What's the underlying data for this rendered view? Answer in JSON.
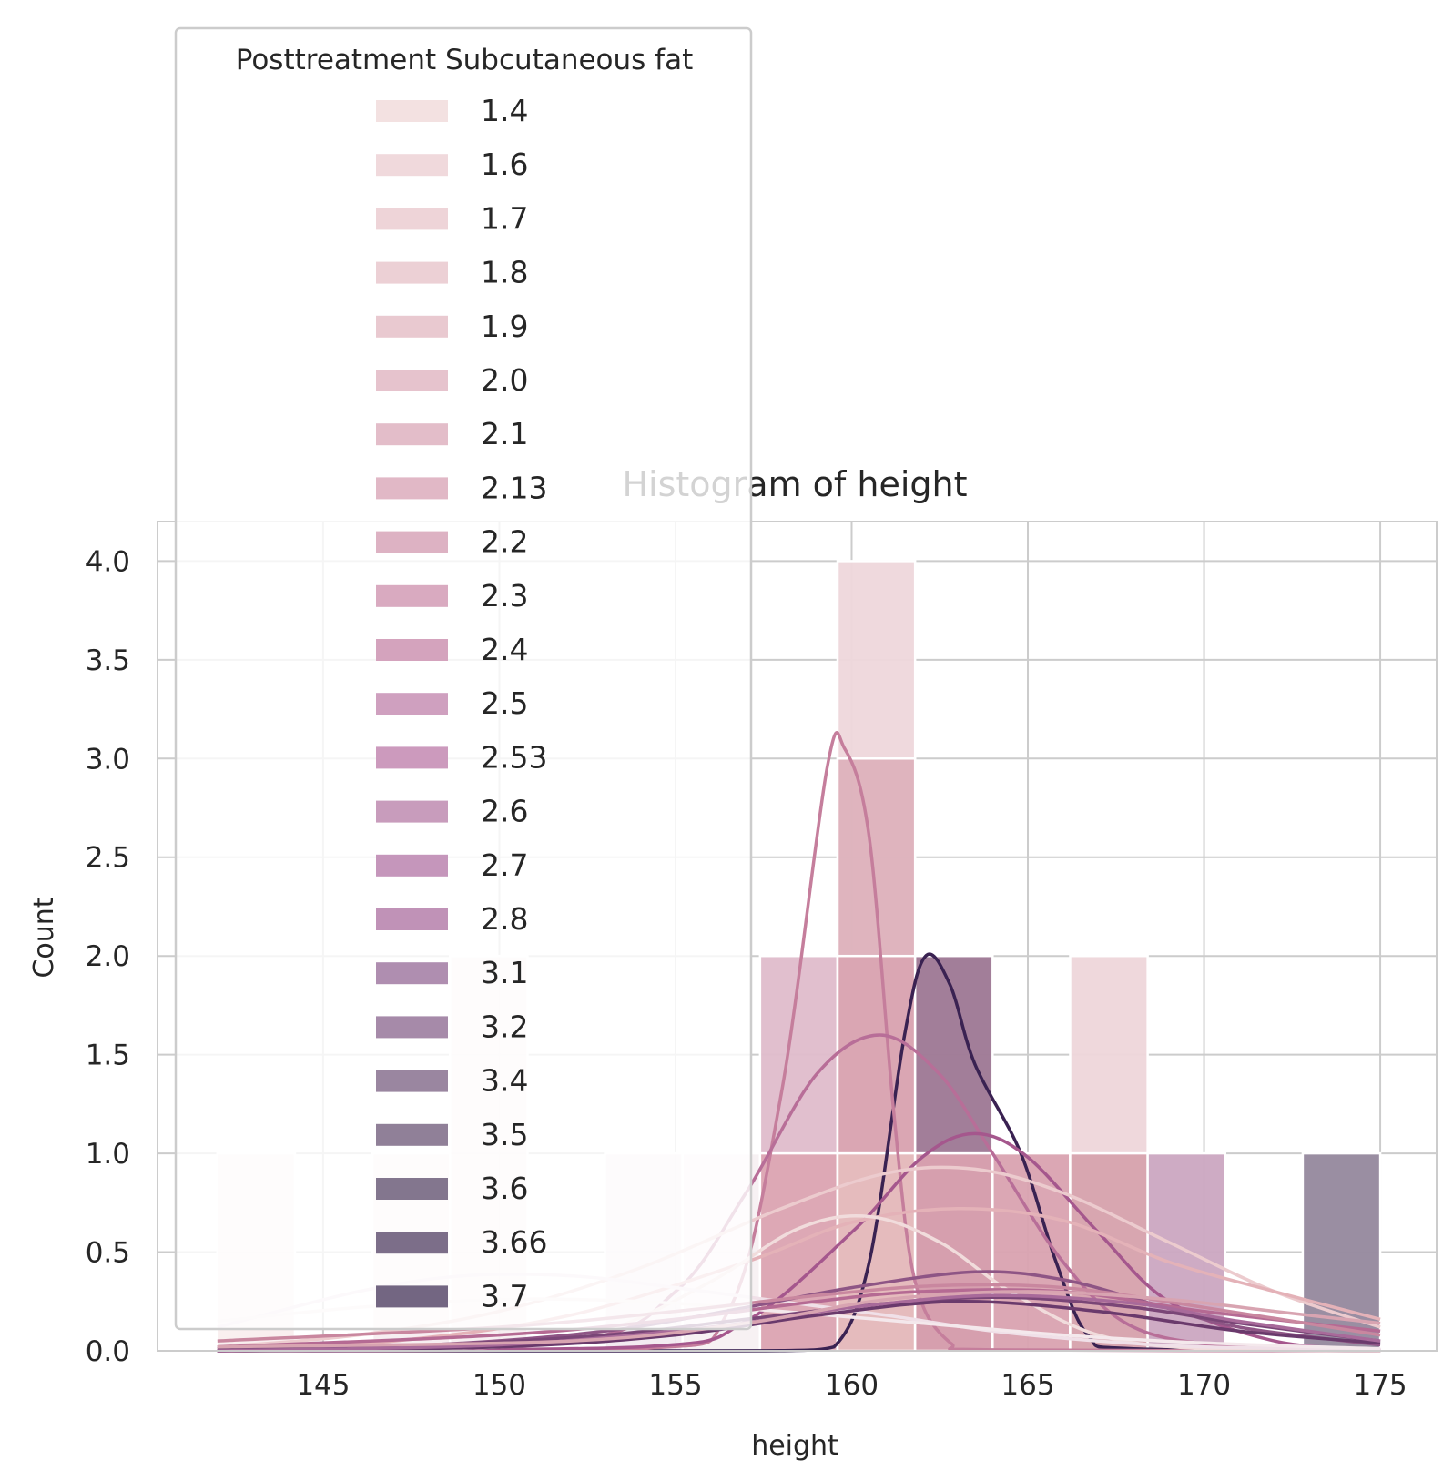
{
  "chart_data": {
    "type": "bar",
    "title": "Histogram of height",
    "xlabel": "height",
    "ylabel": "Count",
    "xlim": [
      140.3,
      176.6
    ],
    "ylim": [
      0,
      4.2
    ],
    "xticks": [
      145,
      150,
      155,
      160,
      165,
      170,
      175
    ],
    "yticks": [
      0.0,
      0.5,
      1.0,
      1.5,
      2.0,
      2.5,
      3.0,
      3.5,
      4.0
    ],
    "grid": true,
    "legend": {
      "title": "Posttreatment Subcutaneous fat",
      "placement": "upper-left",
      "entries": [
        "1.4",
        "1.6",
        "1.7",
        "1.8",
        "1.9",
        "2.0",
        "2.1",
        "2.13",
        "2.2",
        "2.3",
        "2.4",
        "2.5",
        "2.53",
        "2.6",
        "2.7",
        "2.8",
        "3.1",
        "3.2",
        "3.4",
        "3.5",
        "3.6",
        "3.66",
        "3.7"
      ],
      "colors": [
        "#f3e1e1",
        "#f0d9dc",
        "#eed4d8",
        "#ecd0d5",
        "#e9c9d0",
        "#e6c3cd",
        "#e3bdc9",
        "#e1b8c6",
        "#ddb2c3",
        "#d9aac0",
        "#d4a3bd",
        "#cfa0bf",
        "#cc9abd",
        "#c89cbc",
        "#c596bb",
        "#c092b7",
        "#af8eb0",
        "#a68aa9",
        "#9a86a0",
        "#908098",
        "#83768e",
        "#7c6e89",
        "#736682"
      ]
    },
    "bins": {
      "start": 142.0,
      "width": 2.2,
      "edges": [
        142.0,
        144.2,
        146.4,
        148.6,
        150.8,
        153.0,
        155.2,
        157.4,
        159.6,
        161.8,
        164.0,
        166.2,
        168.4,
        170.6,
        172.8,
        175.0
      ]
    },
    "bars": [
      {
        "x_start": 142.0,
        "x_end": 144.2,
        "count": 1,
        "color": "#f8eded",
        "opacity": 0.9
      },
      {
        "x_start": 146.4,
        "x_end": 148.6,
        "count": 1,
        "color": "#f6ecef",
        "opacity": 0.9
      },
      {
        "x_start": 148.6,
        "x_end": 150.8,
        "count": 2,
        "color": "#f6ecef",
        "opacity": 0.9
      },
      {
        "x_start": 153.0,
        "x_end": 155.2,
        "count": 1,
        "color": "#f2e9f0",
        "opacity": 0.9
      },
      {
        "x_start": 155.2,
        "x_end": 157.4,
        "count": 1,
        "color": "#f6f0f2",
        "opacity": 0.9
      },
      {
        "x_start": 157.4,
        "x_end": 159.6,
        "count": 2,
        "color": "#dfbccb",
        "opacity": 0.95
      },
      {
        "x_start": 157.4,
        "x_end": 159.6,
        "count": 1,
        "color": "#dca7b3",
        "opacity": 0.95
      },
      {
        "x_start": 159.6,
        "x_end": 161.8,
        "count": 4,
        "color": "#eed7db",
        "opacity": 0.95
      },
      {
        "x_start": 159.6,
        "x_end": 161.8,
        "count": 3,
        "color": "#ddb2bc",
        "opacity": 0.95
      },
      {
        "x_start": 159.6,
        "x_end": 161.8,
        "count": 2,
        "color": "#d9a5b2",
        "opacity": 0.95
      },
      {
        "x_start": 159.6,
        "x_end": 161.8,
        "count": 1,
        "color": "#e6bcbe",
        "opacity": 0.95
      },
      {
        "x_start": 161.8,
        "x_end": 164.0,
        "count": 2,
        "color": "#a07b97",
        "opacity": 0.98
      },
      {
        "x_start": 161.8,
        "x_end": 164.0,
        "count": 1,
        "color": "#d7a0ae",
        "opacity": 0.98
      },
      {
        "x_start": 164.0,
        "x_end": 166.2,
        "count": 1,
        "color": "#d9a2b0",
        "opacity": 0.95
      },
      {
        "x_start": 166.2,
        "x_end": 168.4,
        "count": 2,
        "color": "#eed6da",
        "opacity": 0.95
      },
      {
        "x_start": 166.2,
        "x_end": 168.4,
        "count": 1,
        "color": "#d6a3ad",
        "opacity": 0.95
      },
      {
        "x_start": 168.4,
        "x_end": 170.6,
        "count": 1,
        "color": "#cba6c1",
        "opacity": 0.95
      },
      {
        "x_start": 172.8,
        "x_end": 175.0,
        "count": 1,
        "color": "#988ca0",
        "opacity": 0.98
      }
    ],
    "kde_curves": [
      {
        "color": "#3a2252",
        "x": [
          142,
          155,
          158,
          159.5,
          160.5,
          161.5,
          162.1,
          162.8,
          163.5,
          164.8,
          165.8,
          166.7,
          168,
          175
        ],
        "y": [
          0,
          0,
          0.001,
          0.02,
          0.45,
          1.6,
          2.0,
          1.85,
          1.45,
          1.0,
          0.45,
          0.08,
          0.01,
          0
        ]
      },
      {
        "color": "#c57e9c",
        "x": [
          142,
          154,
          156.5,
          158,
          159.3,
          159.8,
          160.5,
          161.2,
          161.8,
          162.8,
          164,
          175
        ],
        "y": [
          0,
          0.01,
          0.2,
          1.3,
          2.95,
          3.05,
          2.6,
          1.2,
          0.35,
          0.04,
          0.005,
          0
        ]
      },
      {
        "color": "#b86e98",
        "x": [
          142,
          152,
          155,
          157,
          159,
          160.8,
          162.5,
          164,
          166,
          168,
          171,
          175
        ],
        "y": [
          0,
          0.05,
          0.3,
          0.8,
          1.4,
          1.6,
          1.4,
          1.0,
          0.45,
          0.12,
          0.02,
          0
        ]
      },
      {
        "color": "#a5578d",
        "x": [
          142,
          154,
          157,
          160,
          162,
          163.5,
          165,
          167,
          169,
          172,
          175
        ],
        "y": [
          0,
          0.02,
          0.15,
          0.6,
          0.98,
          1.1,
          0.98,
          0.6,
          0.25,
          0.05,
          0.005
        ]
      },
      {
        "color": "#eccbce",
        "x": [
          142,
          146,
          150,
          154,
          158,
          161,
          163.5,
          166,
          169,
          172,
          175
        ],
        "y": [
          0.02,
          0.08,
          0.2,
          0.42,
          0.72,
          0.9,
          0.92,
          0.8,
          0.55,
          0.3,
          0.12
        ]
      },
      {
        "color": "#e4b2b8",
        "x": [
          142,
          147,
          152,
          157,
          160,
          163,
          166,
          169,
          172,
          175
        ],
        "y": [
          0.01,
          0.05,
          0.18,
          0.45,
          0.65,
          0.72,
          0.66,
          0.45,
          0.3,
          0.16
        ]
      },
      {
        "color": "#f1dcdc",
        "x": [
          142,
          150,
          153,
          156,
          158.5,
          160.5,
          162.5,
          164.5,
          167,
          170,
          175
        ],
        "y": [
          0,
          0.02,
          0.1,
          0.35,
          0.62,
          0.68,
          0.55,
          0.3,
          0.08,
          0.01,
          0
        ]
      },
      {
        "color": "#f0e0e8",
        "x": [
          142,
          146,
          149,
          152,
          155,
          158,
          161,
          164,
          167,
          170,
          175
        ],
        "y": [
          0.12,
          0.3,
          0.38,
          0.38,
          0.32,
          0.25,
          0.18,
          0.1,
          0.05,
          0.02,
          0.01
        ]
      },
      {
        "color": "#f4e8ec",
        "x": [
          142,
          146,
          150,
          154,
          158,
          162,
          166,
          170,
          175
        ],
        "y": [
          0.15,
          0.22,
          0.26,
          0.25,
          0.2,
          0.14,
          0.08,
          0.04,
          0.01
        ]
      },
      {
        "color": "#8e5585",
        "x": [
          142,
          148,
          153,
          157,
          160,
          163.5,
          166,
          168.5,
          171,
          175
        ],
        "y": [
          0.0,
          0.03,
          0.1,
          0.22,
          0.32,
          0.4,
          0.36,
          0.24,
          0.12,
          0.03
        ]
      },
      {
        "color": "#7a4677",
        "x": [
          142,
          148,
          153,
          157,
          161,
          164.5,
          168,
          171,
          175
        ],
        "y": [
          0.01,
          0.03,
          0.08,
          0.16,
          0.24,
          0.27,
          0.22,
          0.14,
          0.05
        ]
      },
      {
        "color": "#6a3a6c",
        "x": [
          142,
          150,
          155,
          159,
          163,
          167,
          171,
          175
        ],
        "y": [
          0.0,
          0.02,
          0.08,
          0.18,
          0.25,
          0.2,
          0.1,
          0.04
        ]
      },
      {
        "color": "#b56a93",
        "x": [
          142,
          150,
          155,
          159,
          162,
          166,
          170,
          175
        ],
        "y": [
          0.02,
          0.08,
          0.16,
          0.25,
          0.3,
          0.3,
          0.2,
          0.1
        ]
      },
      {
        "color": "#c9879f",
        "x": [
          142,
          150,
          155,
          159,
          162.5,
          166,
          170,
          175
        ],
        "y": [
          0.05,
          0.12,
          0.2,
          0.28,
          0.33,
          0.32,
          0.22,
          0.08
        ]
      },
      {
        "color": "#a86a9a",
        "x": [
          142,
          150,
          156,
          160,
          164,
          168,
          171,
          175
        ],
        "y": [
          0.0,
          0.03,
          0.12,
          0.22,
          0.28,
          0.24,
          0.15,
          0.05
        ]
      },
      {
        "color": "#d8a4b1",
        "x": [
          142,
          152,
          157,
          161,
          165,
          169,
          172,
          175
        ],
        "y": [
          0.02,
          0.05,
          0.14,
          0.26,
          0.3,
          0.26,
          0.2,
          0.14
        ]
      }
    ]
  }
}
